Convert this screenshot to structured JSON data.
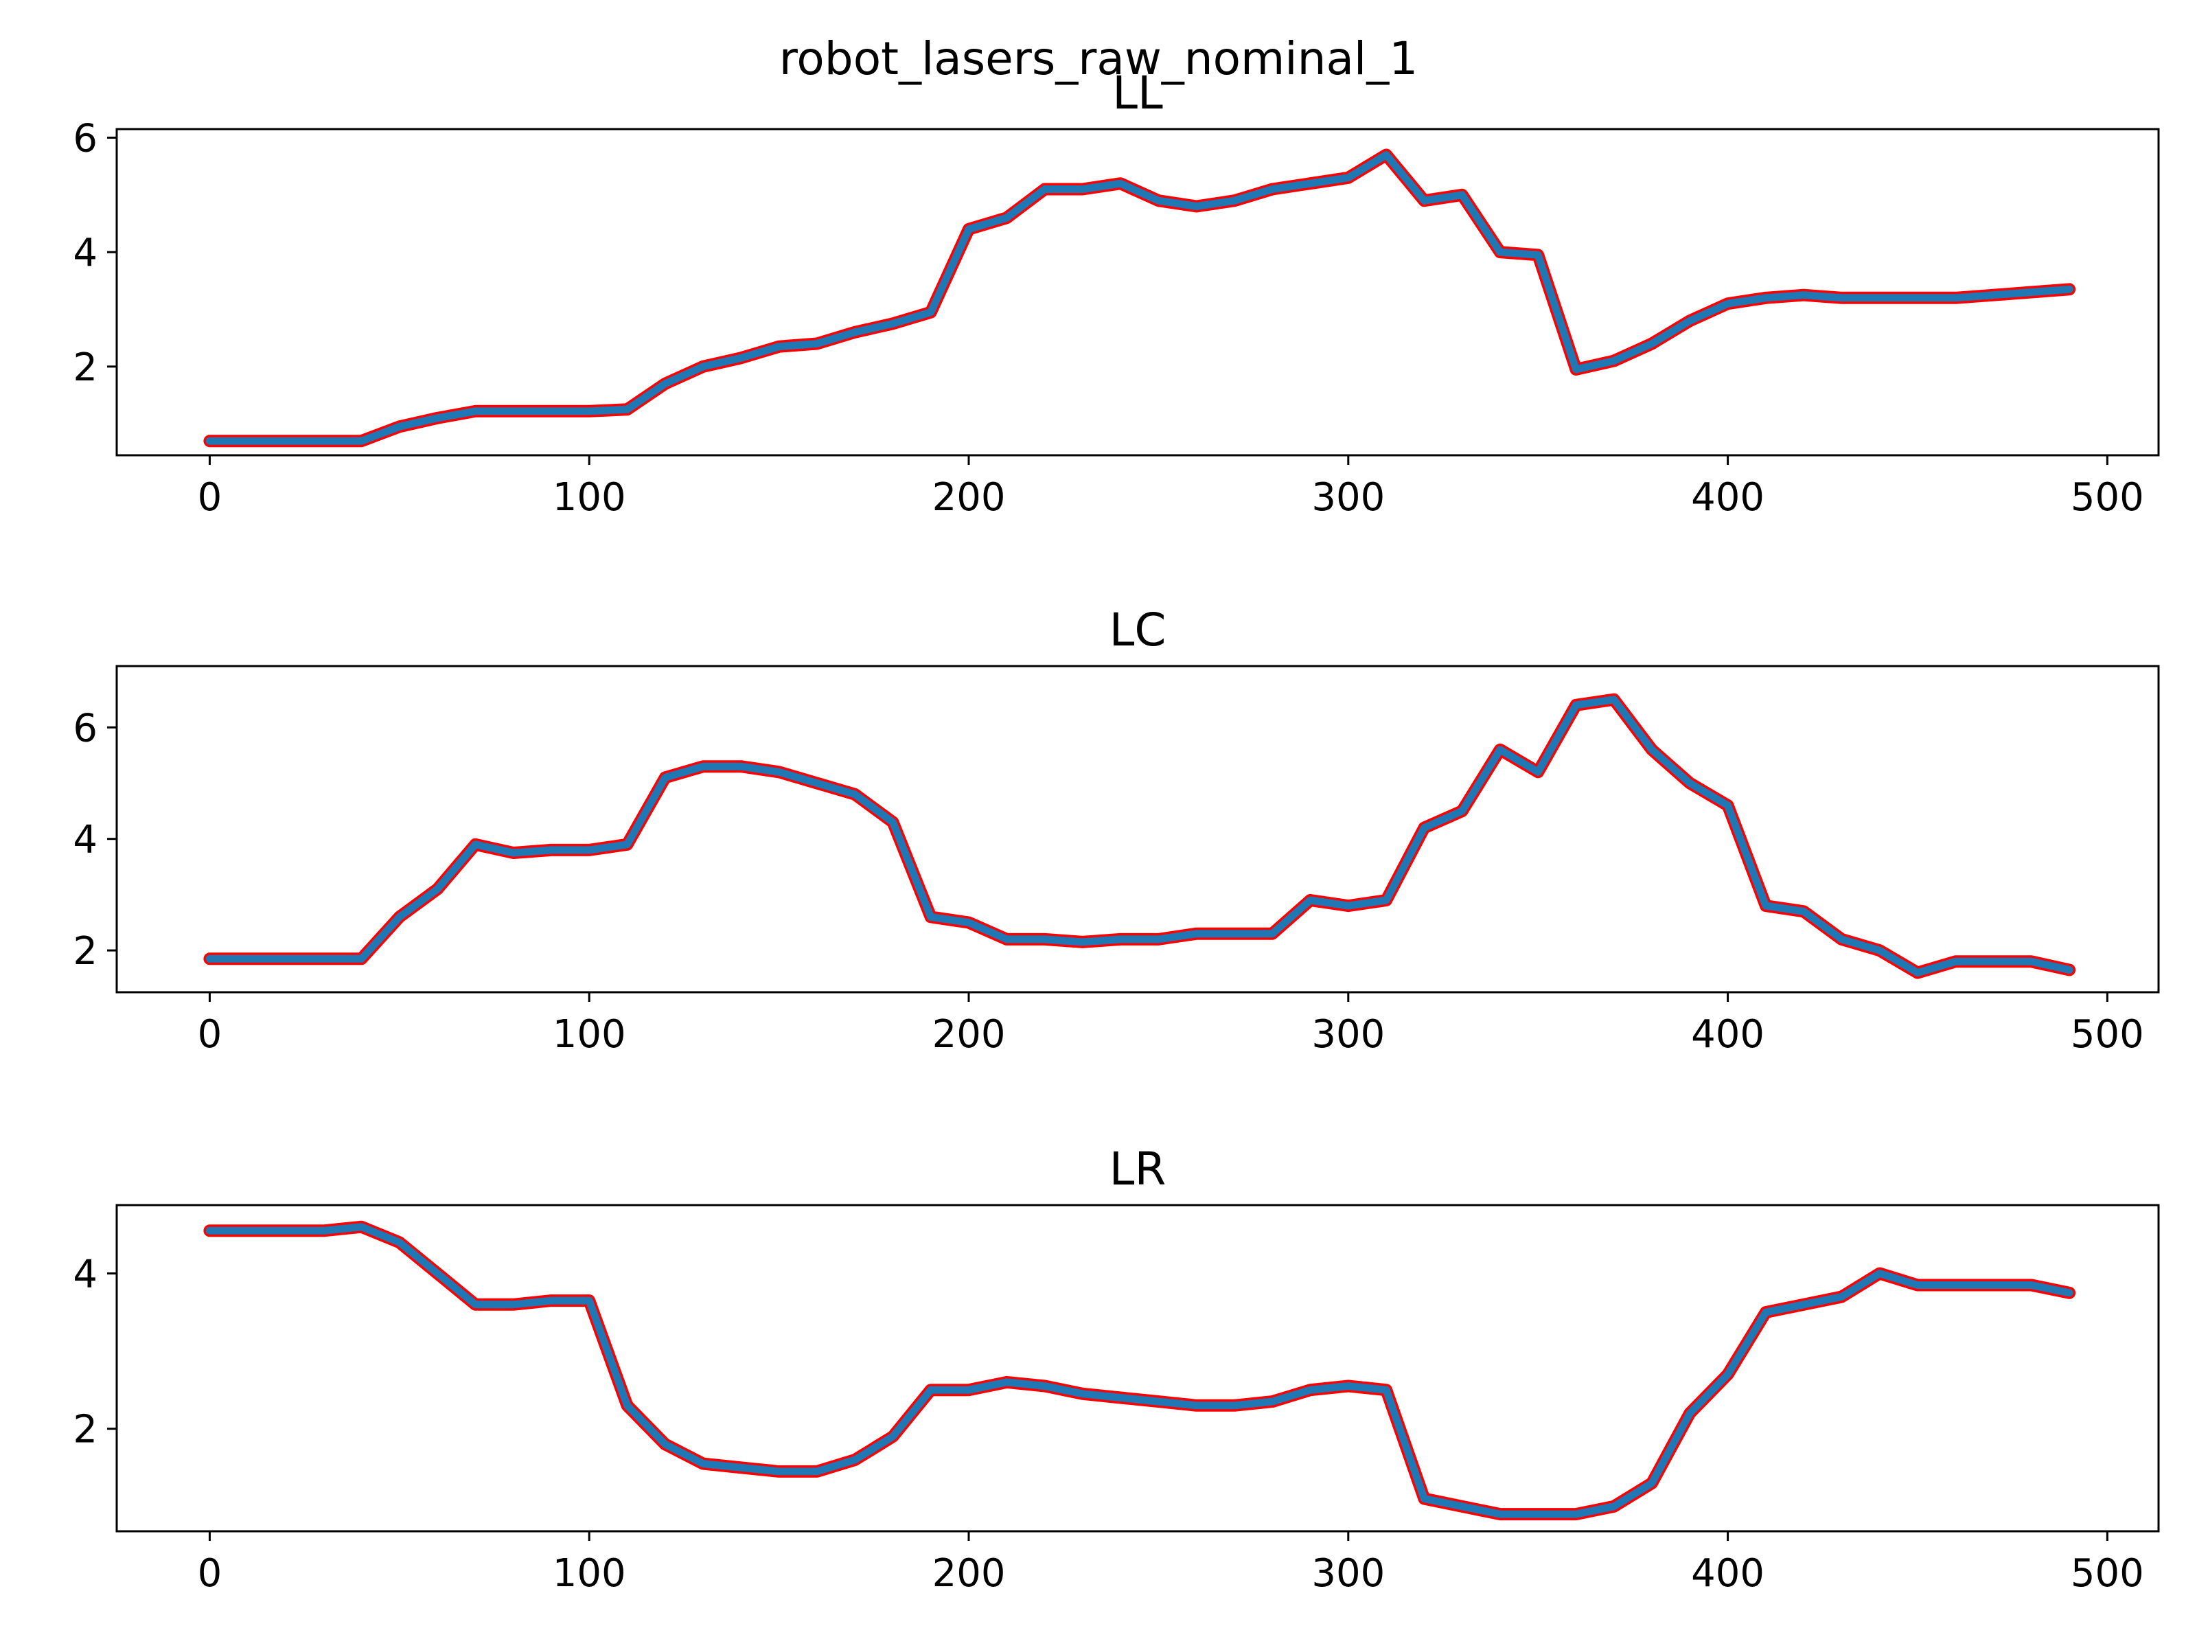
{
  "figure": {
    "suptitle": "robot_lasers_raw_nominal_1"
  },
  "chart_data": [
    {
      "type": "line",
      "title": "LL",
      "xlabel": "",
      "ylabel": "",
      "xlim": [
        -24.5,
        513.5
      ],
      "ylim": [
        0.45,
        6.15
      ],
      "xticks": [
        0,
        100,
        200,
        300,
        400,
        500
      ],
      "yticks": [
        2,
        4,
        6
      ],
      "x_start": 0,
      "x_step": 10,
      "colors": {
        "line": "#1f77b4",
        "outline": "#ff0000"
      },
      "values": [
        0.7,
        0.7,
        0.7,
        0.7,
        0.7,
        0.95,
        1.1,
        1.22,
        1.22,
        1.22,
        1.22,
        1.25,
        1.7,
        2.0,
        2.15,
        2.35,
        2.4,
        2.6,
        2.75,
        2.95,
        4.4,
        4.6,
        5.1,
        5.1,
        5.2,
        4.9,
        4.8,
        4.9,
        5.1,
        5.2,
        5.3,
        5.7,
        4.9,
        5.0,
        4.0,
        3.95,
        1.95,
        2.1,
        2.4,
        2.8,
        3.1,
        3.2,
        3.25,
        3.2,
        3.2,
        3.2,
        3.2,
        3.25,
        3.3,
        3.35
      ]
    },
    {
      "type": "line",
      "title": "LC",
      "xlabel": "",
      "ylabel": "",
      "xlim": [
        -24.5,
        513.5
      ],
      "ylim": [
        1.25,
        7.1
      ],
      "xticks": [
        0,
        100,
        200,
        300,
        400,
        500
      ],
      "yticks": [
        2,
        4,
        6
      ],
      "x_start": 0,
      "x_step": 10,
      "colors": {
        "line": "#1f77b4",
        "outline": "#ff0000"
      },
      "values": [
        1.85,
        1.85,
        1.85,
        1.85,
        1.85,
        2.6,
        3.1,
        3.9,
        3.75,
        3.8,
        3.8,
        3.9,
        5.1,
        5.3,
        5.3,
        5.2,
        5.0,
        4.8,
        4.3,
        2.6,
        2.5,
        2.2,
        2.2,
        2.15,
        2.2,
        2.2,
        2.3,
        2.3,
        2.3,
        2.9,
        2.8,
        2.9,
        4.2,
        4.5,
        5.6,
        5.2,
        6.4,
        6.5,
        5.6,
        5.0,
        4.6,
        2.8,
        2.7,
        2.2,
        2.0,
        1.6,
        1.8,
        1.8,
        1.8,
        1.65
      ]
    },
    {
      "type": "line",
      "title": "LR",
      "xlabel": "",
      "ylabel": "",
      "xlim": [
        -24.5,
        513.5
      ],
      "ylim": [
        0.68,
        4.88
      ],
      "xticks": [
        0,
        100,
        200,
        300,
        400,
        500
      ],
      "yticks": [
        2,
        4
      ],
      "x_start": 0,
      "x_step": 10,
      "colors": {
        "line": "#1f77b4",
        "outline": "#ff0000"
      },
      "values": [
        4.55,
        4.55,
        4.55,
        4.55,
        4.6,
        4.4,
        4.0,
        3.6,
        3.6,
        3.65,
        3.65,
        2.3,
        1.8,
        1.55,
        1.5,
        1.45,
        1.45,
        1.6,
        1.9,
        2.5,
        2.5,
        2.6,
        2.55,
        2.45,
        2.4,
        2.35,
        2.3,
        2.3,
        2.35,
        2.5,
        2.55,
        2.5,
        1.1,
        1.0,
        0.9,
        0.9,
        0.9,
        1.0,
        1.3,
        2.2,
        2.7,
        3.5,
        3.6,
        3.7,
        4.0,
        3.85,
        3.85,
        3.85,
        3.85,
        3.75
      ]
    }
  ]
}
